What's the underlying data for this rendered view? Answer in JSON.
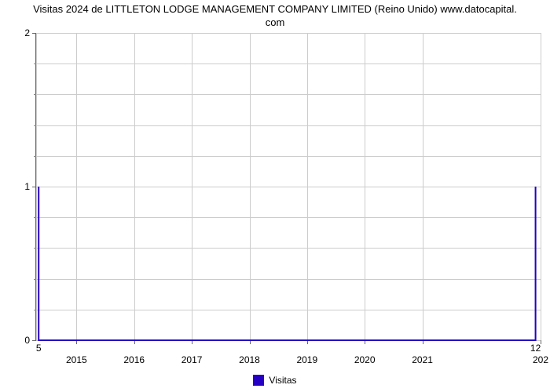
{
  "chart": {
    "type": "line",
    "title_line1": "Visitas 2024 de LITTLETON LODGE MANAGEMENT COMPANY LIMITED (Reino Unido) www.datocapital.",
    "title_line2": "com",
    "title_fontsize": 13,
    "title_color": "#000000",
    "background_color": "#ffffff",
    "grid_color": "#cccccc",
    "axis_color": "#666666",
    "y": {
      "min": 0,
      "max": 2,
      "major_ticks": [
        0,
        1,
        2
      ],
      "minor_tick_count_per_interval": 4,
      "label_fontsize": 12
    },
    "x": {
      "tick_labels": [
        "2015",
        "2016",
        "2017",
        "2018",
        "2019",
        "2020",
        "2021",
        "202"
      ],
      "tick_positions_pct": [
        8.0,
        19.43,
        30.86,
        42.29,
        53.71,
        65.14,
        76.57,
        100.0
      ],
      "point_labels": [
        {
          "text": "5",
          "pos_pct": 0.5
        },
        {
          "text": "12",
          "pos_pct": 99.0
        }
      ],
      "label_fontsize": 12
    },
    "series": {
      "name": "Visitas",
      "color": "#2500c4",
      "line_width": 2,
      "x_pct": [
        0.5,
        99.0
      ],
      "y_values": [
        1,
        1
      ]
    },
    "legend": {
      "label": "Visitas",
      "swatch_color": "#2500c4",
      "fontsize": 12
    }
  }
}
